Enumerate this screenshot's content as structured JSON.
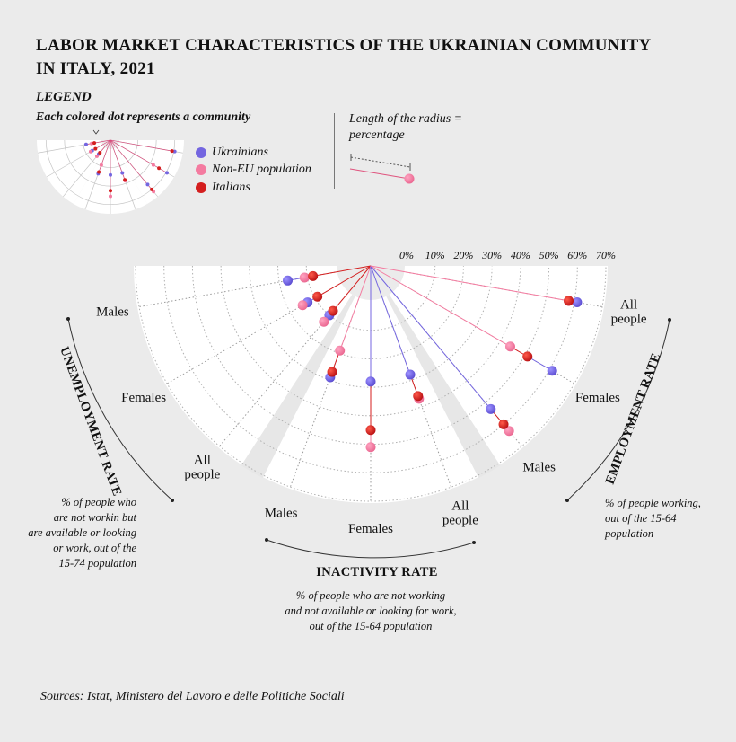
{
  "title_line1": "LABOR MARKET CHARACTERISTICS OF THE UKRAINIAN COMMUNITY",
  "title_line2": "IN ITALY, 2021",
  "legend": {
    "heading": "LEGEND",
    "dots_note": "Each colored dot represents a community",
    "radius_note_line1": "Length of the radius =",
    "radius_note_line2": "percentage",
    "series": [
      {
        "name": "Ukrainians",
        "color": "#7466e0"
      },
      {
        "name": "Non-EU population",
        "color": "#f47ba0"
      },
      {
        "name": "Italians",
        "color": "#d41e1e"
      }
    ]
  },
  "sections": {
    "unemployment": {
      "title": "UNEMPLOYMENT RATE",
      "desc": [
        "% of people who",
        "are not workin but",
        "are available or looking",
        "or work, out of the",
        "15-74 population"
      ]
    },
    "inactivity": {
      "title": "INACTIVITY RATE",
      "desc": [
        "% of people who are not working",
        "and not available or looking for work,",
        "out of the 15-64 population"
      ]
    },
    "employment": {
      "title": "EMPLOYMENT RATE",
      "desc": [
        "% of people working,",
        "out  of the 15-64",
        "population"
      ]
    }
  },
  "sources": "Sources: Istat, Ministero del Lavoro e delle Politiche Sociali",
  "chart_data": {
    "type": "radial",
    "ticks": [
      "0%",
      "10%",
      "20%",
      "30%",
      "40%",
      "50%",
      "60%",
      "70%"
    ],
    "rmax": 70,
    "series": [
      "Ukrainians",
      "Non-EU population",
      "Italians"
    ],
    "groups": [
      {
        "section": "unemployment",
        "category": "Males",
        "label_lines": [
          "Males"
        ],
        "values": {
          "Ukrainians": 17,
          "Non-EU population": 11,
          "Italians": 8
        }
      },
      {
        "section": "unemployment",
        "category": "Females",
        "label_lines": [
          "Females"
        ],
        "values": {
          "Ukrainians": 13,
          "Non-EU population": 15,
          "Italians": 9
        }
      },
      {
        "section": "unemployment",
        "category": "All people",
        "label_lines": [
          "All",
          "people"
        ],
        "values": {
          "Ukrainians": 10,
          "Non-EU population": 13,
          "Italians": 8
        }
      },
      {
        "section": "inactivity",
        "category": "Males",
        "label_lines": [
          "Males"
        ],
        "values": {
          "Ukrainians": 29,
          "Non-EU population": 19,
          "Italians": 27
        }
      },
      {
        "section": "inactivity",
        "category": "Females",
        "label_lines": [
          "Females"
        ],
        "values": {
          "Ukrainians": 28,
          "Non-EU population": 51,
          "Italians": 45
        }
      },
      {
        "section": "inactivity",
        "category": "All people",
        "label_lines": [
          "All",
          "people"
        ],
        "values": {
          "Ukrainians": 28,
          "Non-EU population": 37,
          "Italians": 36
        }
      },
      {
        "section": "employment",
        "category": "Males",
        "label_lines": [
          "Males"
        ],
        "values": {
          "Ukrainians": 53,
          "Non-EU population": 63,
          "Italians": 60
        }
      },
      {
        "section": "employment",
        "category": "Females",
        "label_lines": [
          "Females"
        ],
        "values": {
          "Ukrainians": 61,
          "Non-EU population": 44,
          "Italians": 51
        }
      },
      {
        "section": "employment",
        "category": "All people",
        "label_lines": [
          "All",
          "people"
        ],
        "values": {
          "Ukrainians": 61,
          "Non-EU population": 58,
          "Italians": 58
        }
      }
    ]
  }
}
